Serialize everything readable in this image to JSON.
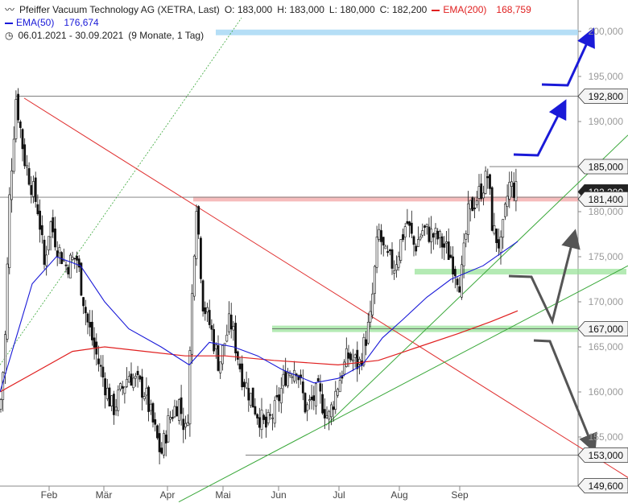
{
  "header": {
    "title": "Pfeiffer Vacuum Technology AG (XETRA, Last)",
    "open": "O: 183,000",
    "high": "H: 183,000",
    "low": "L: 180,000",
    "close": "C: 182,200",
    "ema200_label": "EMA(200)",
    "ema200_value": "168,759",
    "ema50_label": "EMA(50)",
    "ema50_value": "176,674",
    "range": "06.01.2021 - 30.09.2021",
    "period": "(9 Monate, 1 Tag)"
  },
  "colors": {
    "ema200": "#e02020",
    "ema50": "#1a1ad8",
    "support": "#9be39b",
    "resistance": "#f2a0a0",
    "target": "#a8d8f4",
    "arrow_up": "#1a1ad8",
    "arrow_scenario": "#555555",
    "trend_green": "#3aa83a",
    "trend_red": "#e03030"
  },
  "chart_data": {
    "type": "candlestick",
    "x_labels": [
      "Feb",
      "Mär",
      "Apr",
      "Mai",
      "Jun",
      "Jul",
      "Aug",
      "Sep"
    ],
    "y_ticks": [
      "200,000",
      "195,000",
      "190,000",
      "180,000",
      "175,000",
      "170,000",
      "165,000",
      "160,000",
      "155,000"
    ],
    "ylim": [
      148,
      201
    ],
    "level_labels": [
      "192,800",
      "185,000",
      "182,200",
      "181,400",
      "167,000",
      "153,000",
      "149,600"
    ],
    "series": [
      {
        "name": "EMA(200)",
        "value_label": "168,759"
      },
      {
        "name": "EMA(50)",
        "value_label": "176,674"
      }
    ],
    "last_close": "182,200"
  }
}
